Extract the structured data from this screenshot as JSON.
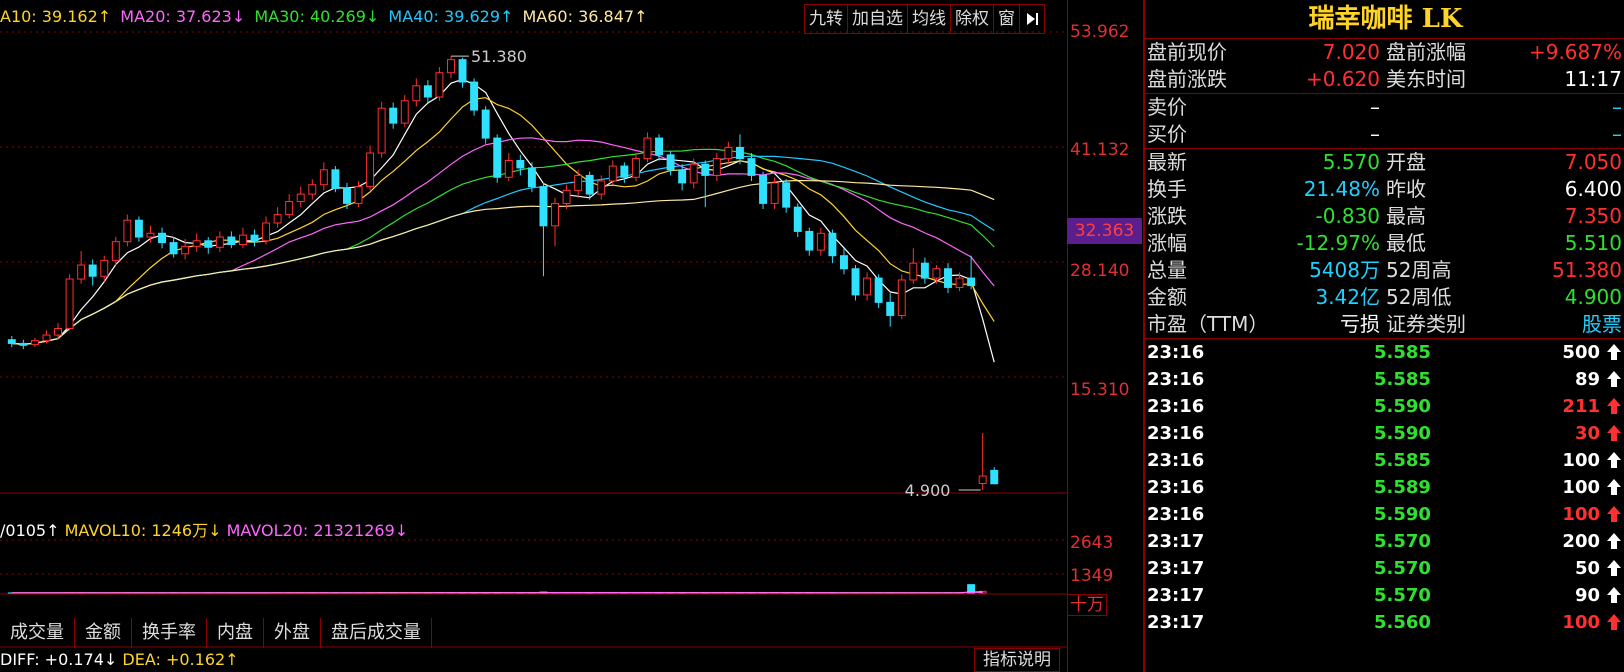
{
  "ma": {
    "ma10": "A10: 39.162↑",
    "ma20": "MA20: 37.623↓",
    "ma30": "MA30: 40.269↓",
    "ma40": "MA40: 39.629↑",
    "ma60": "MA60: 36.847↑"
  },
  "toolbar": [
    "九转",
    "加自选",
    "均线",
    "除权",
    "窗"
  ],
  "axis": {
    "p1": "53.962",
    "p2": "41.132",
    "p3": "28.140",
    "p4": "15.310",
    "current": "32.363",
    "v1": "2643",
    "v2": "1349",
    "unit": "十万"
  },
  "chart_notes": {
    "high": "51.380",
    "low": "4.900"
  },
  "vol": {
    "vol": "/0105↑",
    "mavol10": "MAVOL10: 1246万↓",
    "mavol20": "MAVOL20: 21321269↓"
  },
  "tabs": [
    "成交量",
    "金额",
    "换手率",
    "内盘",
    "外盘",
    "盘后成交量"
  ],
  "macd": {
    "diff": "DIFF: +0.174↓",
    "dea": "DEA: +0.162↑",
    "button": "指标说明"
  },
  "chart_data": {
    "type": "line",
    "price_ylim": [
      4.9,
      53.962
    ],
    "candles": [
      {
        "o": 21.0,
        "c": 20.6,
        "h": 21.4,
        "l": 20.2
      },
      {
        "o": 20.6,
        "c": 20.4,
        "h": 21.0,
        "l": 20.0
      },
      {
        "o": 20.5,
        "c": 20.9,
        "h": 21.2,
        "l": 20.2
      },
      {
        "o": 20.9,
        "c": 21.5,
        "h": 22.0,
        "l": 20.6
      },
      {
        "o": 21.5,
        "c": 22.2,
        "h": 22.8,
        "l": 21.0
      },
      {
        "o": 22.2,
        "c": 27.5,
        "h": 28.0,
        "l": 22.0
      },
      {
        "o": 27.5,
        "c": 29.0,
        "h": 30.5,
        "l": 27.0
      },
      {
        "o": 29.0,
        "c": 27.8,
        "h": 29.6,
        "l": 26.8
      },
      {
        "o": 27.8,
        "c": 29.5,
        "h": 30.0,
        "l": 27.2
      },
      {
        "o": 29.5,
        "c": 31.5,
        "h": 32.0,
        "l": 29.0
      },
      {
        "o": 31.5,
        "c": 33.8,
        "h": 34.4,
        "l": 31.0
      },
      {
        "o": 33.8,
        "c": 32.0,
        "h": 34.2,
        "l": 31.5
      },
      {
        "o": 32.0,
        "c": 32.4,
        "h": 33.2,
        "l": 31.4
      },
      {
        "o": 32.4,
        "c": 31.4,
        "h": 33.0,
        "l": 30.8
      },
      {
        "o": 31.4,
        "c": 30.2,
        "h": 32.0,
        "l": 29.8
      },
      {
        "o": 30.2,
        "c": 31.0,
        "h": 31.8,
        "l": 29.6
      },
      {
        "o": 31.0,
        "c": 31.6,
        "h": 32.4,
        "l": 30.4
      },
      {
        "o": 31.6,
        "c": 30.9,
        "h": 32.0,
        "l": 30.2
      },
      {
        "o": 30.9,
        "c": 32.0,
        "h": 32.6,
        "l": 30.4
      },
      {
        "o": 32.0,
        "c": 31.2,
        "h": 32.6,
        "l": 30.8
      },
      {
        "o": 31.2,
        "c": 32.2,
        "h": 33.0,
        "l": 30.8
      },
      {
        "o": 32.2,
        "c": 31.6,
        "h": 32.8,
        "l": 31.0
      },
      {
        "o": 31.6,
        "c": 33.5,
        "h": 34.2,
        "l": 31.2
      },
      {
        "o": 33.5,
        "c": 34.4,
        "h": 35.2,
        "l": 33.0
      },
      {
        "o": 34.4,
        "c": 35.8,
        "h": 36.6,
        "l": 34.0
      },
      {
        "o": 35.8,
        "c": 36.6,
        "h": 37.4,
        "l": 35.2
      },
      {
        "o": 36.6,
        "c": 37.6,
        "h": 38.2,
        "l": 36.0
      },
      {
        "o": 37.6,
        "c": 39.2,
        "h": 40.0,
        "l": 37.0
      },
      {
        "o": 39.2,
        "c": 37.2,
        "h": 39.6,
        "l": 36.8
      },
      {
        "o": 37.2,
        "c": 35.6,
        "h": 37.8,
        "l": 35.0
      },
      {
        "o": 35.6,
        "c": 37.4,
        "h": 38.0,
        "l": 35.2
      },
      {
        "o": 37.4,
        "c": 41.0,
        "h": 41.8,
        "l": 37.0
      },
      {
        "o": 41.0,
        "c": 45.8,
        "h": 46.5,
        "l": 40.5
      },
      {
        "o": 45.8,
        "c": 44.2,
        "h": 46.4,
        "l": 43.6
      },
      {
        "o": 44.2,
        "c": 46.6,
        "h": 47.2,
        "l": 43.8
      },
      {
        "o": 46.6,
        "c": 48.2,
        "h": 49.0,
        "l": 46.0
      },
      {
        "o": 48.2,
        "c": 47.0,
        "h": 48.8,
        "l": 46.4
      },
      {
        "o": 47.0,
        "c": 49.6,
        "h": 50.2,
        "l": 46.6
      },
      {
        "o": 49.6,
        "c": 51.0,
        "h": 51.38,
        "l": 49.0
      },
      {
        "o": 51.0,
        "c": 48.6,
        "h": 51.2,
        "l": 48.0
      },
      {
        "o": 48.6,
        "c": 45.6,
        "h": 49.0,
        "l": 45.0
      },
      {
        "o": 45.6,
        "c": 42.6,
        "h": 46.0,
        "l": 42.0
      },
      {
        "o": 42.6,
        "c": 38.4,
        "h": 43.0,
        "l": 37.8
      },
      {
        "o": 38.4,
        "c": 40.2,
        "h": 41.0,
        "l": 38.0
      },
      {
        "o": 40.2,
        "c": 39.4,
        "h": 40.8,
        "l": 38.6
      },
      {
        "o": 39.4,
        "c": 37.4,
        "h": 40.0,
        "l": 36.8
      },
      {
        "o": 37.4,
        "c": 33.2,
        "h": 37.8,
        "l": 27.8
      },
      {
        "o": 33.2,
        "c": 35.6,
        "h": 36.2,
        "l": 31.0
      },
      {
        "o": 35.6,
        "c": 37.0,
        "h": 37.6,
        "l": 35.0
      },
      {
        "o": 37.0,
        "c": 38.6,
        "h": 39.2,
        "l": 36.2
      },
      {
        "o": 38.6,
        "c": 36.6,
        "h": 39.0,
        "l": 36.0
      },
      {
        "o": 36.6,
        "c": 38.0,
        "h": 38.6,
        "l": 36.0
      },
      {
        "o": 38.0,
        "c": 39.6,
        "h": 40.2,
        "l": 37.6
      },
      {
        "o": 39.6,
        "c": 38.4,
        "h": 40.0,
        "l": 37.8
      },
      {
        "o": 38.4,
        "c": 40.4,
        "h": 41.0,
        "l": 38.0
      },
      {
        "o": 40.4,
        "c": 42.6,
        "h": 43.2,
        "l": 40.0
      },
      {
        "o": 42.6,
        "c": 40.8,
        "h": 43.0,
        "l": 40.2
      },
      {
        "o": 40.8,
        "c": 39.2,
        "h": 41.2,
        "l": 38.6
      },
      {
        "o": 39.2,
        "c": 37.8,
        "h": 39.8,
        "l": 37.0
      },
      {
        "o": 37.8,
        "c": 39.8,
        "h": 40.4,
        "l": 37.2
      },
      {
        "o": 39.8,
        "c": 38.6,
        "h": 40.2,
        "l": 35.2
      },
      {
        "o": 38.6,
        "c": 40.4,
        "h": 41.0,
        "l": 38.0
      },
      {
        "o": 40.4,
        "c": 41.6,
        "h": 42.2,
        "l": 39.8
      },
      {
        "o": 41.6,
        "c": 40.4,
        "h": 43.0,
        "l": 39.8
      },
      {
        "o": 40.4,
        "c": 38.6,
        "h": 41.0,
        "l": 38.0
      },
      {
        "o": 38.6,
        "c": 35.6,
        "h": 39.0,
        "l": 35.0
      },
      {
        "o": 35.6,
        "c": 37.8,
        "h": 38.4,
        "l": 35.0
      },
      {
        "o": 37.8,
        "c": 35.2,
        "h": 38.2,
        "l": 34.6
      },
      {
        "o": 35.2,
        "c": 32.6,
        "h": 35.6,
        "l": 32.0
      },
      {
        "o": 32.6,
        "c": 30.6,
        "h": 33.0,
        "l": 30.0
      },
      {
        "o": 30.6,
        "c": 32.4,
        "h": 33.0,
        "l": 30.0
      },
      {
        "o": 32.4,
        "c": 30.0,
        "h": 32.8,
        "l": 29.2
      },
      {
        "o": 30.0,
        "c": 28.6,
        "h": 30.8,
        "l": 28.0
      },
      {
        "o": 28.6,
        "c": 25.8,
        "h": 29.0,
        "l": 25.2
      },
      {
        "o": 25.8,
        "c": 27.6,
        "h": 28.2,
        "l": 25.2
      },
      {
        "o": 27.6,
        "c": 25.0,
        "h": 28.0,
        "l": 24.4
      },
      {
        "o": 25.0,
        "c": 23.6,
        "h": 26.0,
        "l": 22.4
      },
      {
        "o": 23.6,
        "c": 27.4,
        "h": 28.0,
        "l": 23.2
      },
      {
        "o": 27.4,
        "c": 29.2,
        "h": 30.8,
        "l": 27.0
      },
      {
        "o": 29.2,
        "c": 27.6,
        "h": 29.8,
        "l": 27.0
      },
      {
        "o": 27.6,
        "c": 28.6,
        "h": 29.0,
        "l": 27.0
      },
      {
        "o": 28.6,
        "c": 26.6,
        "h": 29.2,
        "l": 26.0
      },
      {
        "o": 26.6,
        "c": 27.6,
        "h": 28.2,
        "l": 26.2
      },
      {
        "o": 27.6,
        "c": 26.8,
        "h": 30.0,
        "l": 26.4
      },
      {
        "o": 5.6,
        "c": 6.4,
        "h": 11.0,
        "l": 4.9
      },
      {
        "o": 7.0,
        "c": 5.57,
        "h": 7.35,
        "l": 5.51
      }
    ],
    "volumes": [
      2,
      2,
      3,
      2,
      3,
      8,
      10,
      6,
      5,
      6,
      8,
      5,
      4,
      4,
      5,
      4,
      4,
      4,
      5,
      4,
      5,
      4,
      6,
      7,
      7,
      8,
      8,
      10,
      7,
      6,
      6,
      10,
      14,
      10,
      9,
      11,
      9,
      12,
      14,
      12,
      10,
      11,
      12,
      9,
      8,
      8,
      30,
      14,
      10,
      10,
      8,
      8,
      9,
      8,
      9,
      10,
      8,
      8,
      7,
      8,
      9,
      8,
      9,
      9,
      8,
      7,
      8,
      7,
      7,
      6,
      6,
      7,
      6,
      6,
      5,
      6,
      6,
      5,
      5,
      5,
      5,
      6,
      6,
      260,
      52
    ],
    "vol_ylim": [
      0,
      2900
    ]
  },
  "panel": {
    "title": "瑞幸咖啡 LK",
    "pre_rows": [
      {
        "l1": "盘前现价",
        "v1": "7.020",
        "c1": "red",
        "l2": "盘前涨幅",
        "v2": "+9.687%",
        "c2": "red"
      },
      {
        "l1": "盘前涨跌",
        "v1": "+0.620",
        "c1": "red",
        "l2": "美东时间",
        "v2": "11:17",
        "c2": "white"
      }
    ],
    "bid_rows": [
      {
        "l1": "卖价",
        "v1": "–",
        "c1": "white",
        "v2": "–",
        "c2": "cyan"
      },
      {
        "l1": "买价",
        "v1": "–",
        "c1": "white",
        "v2": "–",
        "c2": "cyan"
      }
    ],
    "stat_rows": [
      {
        "l1": "最新",
        "v1": "5.570",
        "c1": "green",
        "l2": "开盘",
        "v2": "7.050",
        "c2": "red"
      },
      {
        "l1": "换手",
        "v1": "21.48%",
        "c1": "cyan",
        "l2": "昨收",
        "v2": "6.400",
        "c2": "white"
      },
      {
        "l1": "涨跌",
        "v1": "-0.830",
        "c1": "green",
        "l2": "最高",
        "v2": "7.350",
        "c2": "red"
      },
      {
        "l1": "涨幅",
        "v1": "-12.97%",
        "c1": "green",
        "l2": "最低",
        "v2": "5.510",
        "c2": "green"
      },
      {
        "l1": "总量",
        "v1": "5408万",
        "c1": "cyan",
        "l2": "52周高",
        "v2": "51.380",
        "c2": "red"
      },
      {
        "l1": "金额",
        "v1": "3.42亿",
        "c1": "cyan",
        "l2": "52周低",
        "v2": "4.900",
        "c2": "green"
      },
      {
        "l1": "市盈（TTM）",
        "v1": "亏损",
        "c1": "white",
        "l2": "证券类别",
        "v2": "股票",
        "c2": "cyan"
      }
    ],
    "trades": [
      {
        "t": "23:16",
        "p": "5.585",
        "q": "500",
        "c": "white"
      },
      {
        "t": "23:16",
        "p": "5.585",
        "q": "89",
        "c": "white"
      },
      {
        "t": "23:16",
        "p": "5.590",
        "q": "211",
        "c": "red"
      },
      {
        "t": "23:16",
        "p": "5.590",
        "q": "30",
        "c": "red"
      },
      {
        "t": "23:16",
        "p": "5.585",
        "q": "100",
        "c": "white"
      },
      {
        "t": "23:16",
        "p": "5.589",
        "q": "100",
        "c": "white"
      },
      {
        "t": "23:16",
        "p": "5.590",
        "q": "100",
        "c": "red"
      },
      {
        "t": "23:17",
        "p": "5.570",
        "q": "200",
        "c": "white"
      },
      {
        "t": "23:17",
        "p": "5.570",
        "q": "50",
        "c": "white"
      },
      {
        "t": "23:17",
        "p": "5.570",
        "q": "90",
        "c": "white"
      },
      {
        "t": "23:17",
        "p": "5.560",
        "q": "100",
        "c": "red"
      }
    ]
  }
}
